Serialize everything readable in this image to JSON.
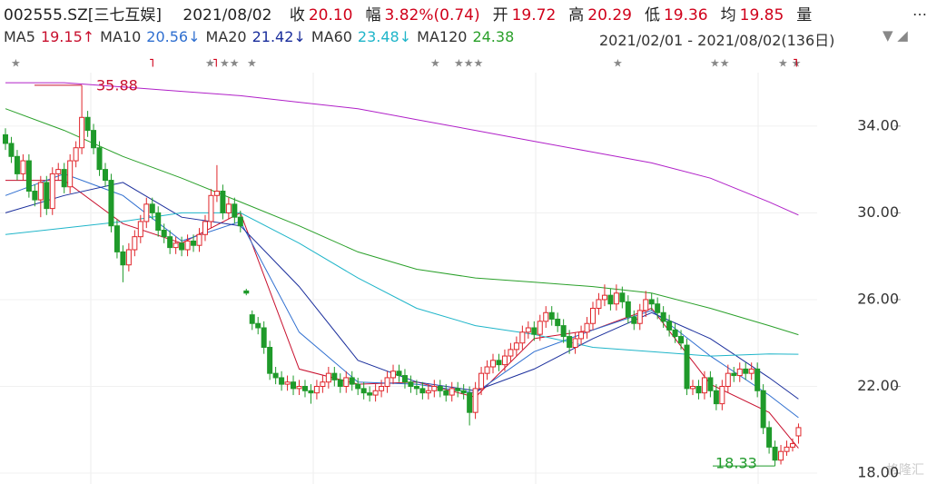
{
  "chart_data": {
    "type": "candlestick",
    "title": "002555.SZ[三七互娱]",
    "date": "2021/08/02",
    "quote": [
      {
        "label": "收",
        "value": "20.10"
      },
      {
        "label": "幅",
        "value": "3.82%(0.74)"
      },
      {
        "label": "开",
        "value": "19.72"
      },
      {
        "label": "高",
        "value": "20.29"
      },
      {
        "label": "低",
        "value": "19.36"
      },
      {
        "label": "均",
        "value": "19.85"
      },
      {
        "label": "量",
        "value": ""
      }
    ],
    "range_text": "2021/02/01 - 2021/08/02(136日)",
    "ylim": [
      17.5,
      37.3
    ],
    "yticks": [
      {
        "value": 18,
        "label": "18.00"
      },
      {
        "value": 22,
        "label": "22.00"
      },
      {
        "value": 26,
        "label": "26.00"
      },
      {
        "value": 30,
        "label": "30.00"
      },
      {
        "value": 34,
        "label": "34.00"
      }
    ],
    "up_color": "#e0262b",
    "down_color": "#1f9a2a",
    "open": [
      33.6,
      33.2,
      32.6,
      31.8,
      32.4,
      31.0,
      30.6,
      31.4,
      30.2,
      31.8,
      32.0,
      31.2,
      32.4,
      33.0,
      34.4,
      33.8,
      33.0,
      32.0,
      31.5,
      29.4,
      28.2,
      27.6,
      28.3,
      28.9,
      29.6,
      30.4,
      30.0,
      29.2,
      28.9,
      28.4,
      28.6,
      28.3,
      28.7,
      28.5,
      29.0,
      29.6,
      30.8,
      31.0,
      30.0,
      30.4,
      29.8,
      26.4,
      25.3,
      24.9,
      24.7,
      23.8,
      22.6,
      22.4,
      22.1,
      22.2,
      21.9,
      22.0,
      21.8,
      21.7,
      22.0,
      22.2,
      22.6,
      22.3,
      22.0,
      22.4,
      22.1,
      21.9,
      21.7,
      21.6,
      21.8,
      22.0,
      22.4,
      22.7,
      22.5,
      22.2,
      22.0,
      21.9,
      21.7,
      21.8,
      22.0,
      21.8,
      21.6,
      21.9,
      21.8,
      21.7,
      20.8,
      21.9,
      22.6,
      22.9,
      23.2,
      23.0,
      23.4,
      23.7,
      24.0,
      24.5,
      24.7,
      24.4,
      25.0,
      25.4,
      25.1,
      24.8,
      24.3,
      23.8,
      24.2,
      24.5,
      24.9,
      25.6,
      26.0,
      26.2,
      25.8,
      26.3,
      25.9,
      25.2,
      24.9,
      25.5,
      26.0,
      25.8,
      25.4,
      25.0,
      24.6,
      24.3,
      23.9,
      21.9,
      22.0,
      21.7,
      22.4,
      21.8,
      21.2,
      22.0,
      22.6,
      22.5,
      22.8,
      22.6,
      22.8,
      21.8,
      20.1,
      19.2,
      18.6,
      19.0,
      19.2,
      19.72
    ],
    "high": [
      33.9,
      33.5,
      32.9,
      32.7,
      32.7,
      31.3,
      31.7,
      31.7,
      32.1,
      32.3,
      32.3,
      32.7,
      33.3,
      35.88,
      34.7,
      34.1,
      33.3,
      32.3,
      31.8,
      29.7,
      28.5,
      28.6,
      29.2,
      29.9,
      30.7,
      30.7,
      30.3,
      29.5,
      29.2,
      28.9,
      28.9,
      29.0,
      29.0,
      29.3,
      29.9,
      31.1,
      32.2,
      31.3,
      30.7,
      30.7,
      30.1,
      26.5,
      25.5,
      25.2,
      25.0,
      24.1,
      22.9,
      22.7,
      22.5,
      22.5,
      22.3,
      22.3,
      22.1,
      22.3,
      22.5,
      22.9,
      22.9,
      22.6,
      22.7,
      22.7,
      22.4,
      22.2,
      22.0,
      22.1,
      22.3,
      22.7,
      23.0,
      23.0,
      22.8,
      22.5,
      22.3,
      22.2,
      22.1,
      22.3,
      22.3,
      22.1,
      22.2,
      22.2,
      22.1,
      22.0,
      22.2,
      22.9,
      23.2,
      23.5,
      23.5,
      23.7,
      24.0,
      24.3,
      24.8,
      25.0,
      25.0,
      25.3,
      25.7,
      25.7,
      25.4,
      25.1,
      24.6,
      24.5,
      24.8,
      25.2,
      25.9,
      26.3,
      26.7,
      26.5,
      26.7,
      26.6,
      26.2,
      25.5,
      25.8,
      26.4,
      26.3,
      26.1,
      25.7,
      25.3,
      24.9,
      24.6,
      24.2,
      22.3,
      22.3,
      22.7,
      22.7,
      22.1,
      22.3,
      23.0,
      22.9,
      23.1,
      23.1,
      23.1,
      23.1,
      22.1,
      20.4,
      19.5,
      19.3,
      19.5,
      19.6,
      20.29
    ],
    "low": [
      32.9,
      32.3,
      31.5,
      31.5,
      30.7,
      30.3,
      29.8,
      29.9,
      29.9,
      31.5,
      30.9,
      30.9,
      32.1,
      32.7,
      33.5,
      32.7,
      31.7,
      31.2,
      29.1,
      27.9,
      26.8,
      27.3,
      28.0,
      28.6,
      29.3,
      29.7,
      28.9,
      28.6,
      28.1,
      28.1,
      28.0,
      28.0,
      28.2,
      28.2,
      28.7,
      29.3,
      30.5,
      29.7,
      29.7,
      29.5,
      29.1,
      26.2,
      24.6,
      24.4,
      23.5,
      22.3,
      22.1,
      21.8,
      21.8,
      21.6,
      21.6,
      21.5,
      21.2,
      21.4,
      21.7,
      21.9,
      22.0,
      21.7,
      21.7,
      21.8,
      21.6,
      21.4,
      21.3,
      21.3,
      21.5,
      21.7,
      22.1,
      22.2,
      21.9,
      21.7,
      21.6,
      21.4,
      21.4,
      21.5,
      21.5,
      21.3,
      21.3,
      21.5,
      21.4,
      20.2,
      20.5,
      21.6,
      22.3,
      22.6,
      22.7,
      22.7,
      23.1,
      23.4,
      23.7,
      24.2,
      24.1,
      24.1,
      24.7,
      24.8,
      24.5,
      24.0,
      23.5,
      23.5,
      23.9,
      24.2,
      24.6,
      25.3,
      25.7,
      25.5,
      25.5,
      25.6,
      24.9,
      24.6,
      24.6,
      25.2,
      25.5,
      25.1,
      24.7,
      24.3,
      24.0,
      23.7,
      21.6,
      21.6,
      21.4,
      21.4,
      21.5,
      20.9,
      20.9,
      21.7,
      22.2,
      22.2,
      22.3,
      22.3,
      21.5,
      19.8,
      18.9,
      18.33,
      18.4,
      18.8,
      19.0,
      19.36
    ],
    "close": [
      33.2,
      32.6,
      31.8,
      32.4,
      31.0,
      30.6,
      31.4,
      30.2,
      31.8,
      32.0,
      31.2,
      32.4,
      33.0,
      34.4,
      33.8,
      33.0,
      32.0,
      31.5,
      29.4,
      28.2,
      27.6,
      28.3,
      28.9,
      29.6,
      30.4,
      30.0,
      29.2,
      28.9,
      28.4,
      28.6,
      28.3,
      28.7,
      28.5,
      29.0,
      29.6,
      30.8,
      31.0,
      30.0,
      30.4,
      29.8,
      29.4,
      26.3,
      24.9,
      24.7,
      23.8,
      22.6,
      22.4,
      22.1,
      22.2,
      21.9,
      22.0,
      21.8,
      21.7,
      22.0,
      22.2,
      22.6,
      22.3,
      22.0,
      22.4,
      22.1,
      21.9,
      21.7,
      21.6,
      21.8,
      22.0,
      22.4,
      22.7,
      22.5,
      22.2,
      22.0,
      21.9,
      21.7,
      21.8,
      22.0,
      21.8,
      21.6,
      21.9,
      21.8,
      21.7,
      20.8,
      21.9,
      22.6,
      22.9,
      23.2,
      23.0,
      23.4,
      23.7,
      24.0,
      24.5,
      24.7,
      24.4,
      25.0,
      25.4,
      25.1,
      24.8,
      24.3,
      23.8,
      24.2,
      24.5,
      24.9,
      25.6,
      26.0,
      26.2,
      25.8,
      26.3,
      25.9,
      25.2,
      24.9,
      25.5,
      26.0,
      25.8,
      25.4,
      25.0,
      24.6,
      24.3,
      24.0,
      21.9,
      22.0,
      21.7,
      22.4,
      21.8,
      21.2,
      22.0,
      22.6,
      22.5,
      22.8,
      22.6,
      22.8,
      21.8,
      20.1,
      19.2,
      18.6,
      19.0,
      19.2,
      19.36,
      20.1
    ],
    "series": [
      {
        "name": "MA5",
        "legend_value": "19.15↑",
        "color": "#c8102e",
        "x": [
          0,
          10,
          20,
          30,
          40,
          50,
          60,
          70,
          80,
          90,
          100,
          110,
          120,
          130,
          135
        ],
        "values": [
          31.5,
          31.5,
          29.5,
          28.6,
          30.0,
          22.8,
          22.1,
          22.2,
          21.5,
          24.2,
          24.6,
          25.6,
          22.1,
          20.8,
          19.15
        ]
      },
      {
        "name": "MA10",
        "legend_value": "20.56↓",
        "color": "#2f6fd0",
        "x": [
          0,
          10,
          20,
          30,
          40,
          50,
          60,
          70,
          80,
          90,
          100,
          110,
          120,
          130,
          135
        ],
        "values": [
          30.8,
          31.8,
          30.8,
          28.7,
          29.6,
          24.5,
          22.2,
          22.1,
          21.7,
          23.6,
          24.6,
          25.5,
          23.4,
          21.6,
          20.56
        ]
      },
      {
        "name": "MA20",
        "legend_value": "21.42↓",
        "color": "#1a2e9c",
        "x": [
          0,
          10,
          20,
          30,
          40,
          50,
          60,
          70,
          80,
          90,
          100,
          110,
          120,
          130,
          135
        ],
        "values": [
          30.0,
          30.8,
          31.4,
          29.8,
          29.4,
          26.6,
          23.2,
          22.2,
          21.8,
          22.8,
          24.2,
          25.4,
          24.2,
          22.4,
          21.42
        ]
      },
      {
        "name": "MA60",
        "legend_value": "23.48↓",
        "color": "#1fb5c9",
        "x": [
          0,
          10,
          20,
          30,
          40,
          50,
          60,
          70,
          80,
          90,
          100,
          110,
          120,
          130,
          135
        ],
        "values": [
          29.0,
          29.3,
          29.6,
          30.0,
          30.0,
          28.6,
          27.0,
          25.6,
          24.8,
          24.4,
          23.8,
          23.6,
          23.4,
          23.5,
          23.48
        ]
      },
      {
        "name": "MA120",
        "legend_value": "24.38",
        "color": "#2aa02a",
        "x": [
          0,
          10,
          20,
          30,
          40,
          50,
          60,
          70,
          80,
          90,
          100,
          110,
          120,
          130,
          135
        ],
        "values": [
          34.8,
          33.8,
          32.6,
          31.6,
          30.5,
          29.4,
          28.2,
          27.4,
          27.0,
          26.8,
          26.6,
          26.3,
          25.6,
          24.8,
          24.38
        ]
      },
      {
        "color": "#b020c8",
        "x": [
          0,
          10,
          20,
          30,
          40,
          50,
          60,
          70,
          80,
          90,
          100,
          110,
          120,
          130,
          135
        ],
        "values": [
          36.0,
          36.0,
          35.8,
          35.6,
          35.4,
          35.1,
          34.8,
          34.3,
          33.8,
          33.3,
          32.8,
          32.3,
          31.6,
          30.5,
          29.9
        ]
      }
    ],
    "watermark": "格隆汇"
  }
}
